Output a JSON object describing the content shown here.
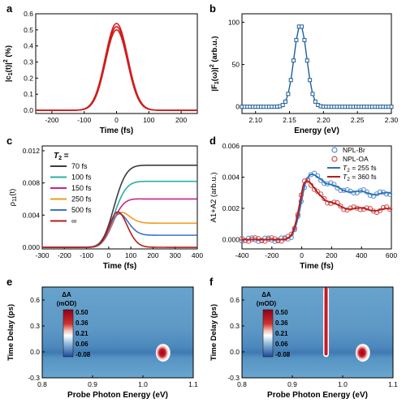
{
  "chart_data": [
    {
      "panel": "a",
      "type": "line",
      "xlabel": "Time (fs)",
      "ylabel": "|c1(t)|² (%)",
      "ylabel_parts": {
        "main": "|c",
        "sub": "1",
        "mid": "(t)|",
        "sup": "2",
        "unit": "(%)"
      },
      "xlim": [
        -250,
        250
      ],
      "ylim": [
        -0.02,
        0.6
      ],
      "xticks": [
        -200,
        -100,
        0,
        100,
        200
      ],
      "yticks": [
        0.0,
        0.1,
        0.2,
        0.3,
        0.4,
        0.5,
        0.6
      ],
      "series": [
        {
          "color": "#d01c1c",
          "shape": "gaussian",
          "center": 0,
          "fwhm": 82,
          "peak": 0.54
        },
        {
          "color": "#d01c1c",
          "shape": "gaussian",
          "center": 0,
          "fwhm": 81,
          "peak": 0.52
        },
        {
          "color": "#d01c1c",
          "shape": "gaussian",
          "center": 0,
          "fwhm": 80,
          "peak": 0.5
        }
      ]
    },
    {
      "panel": "b",
      "type": "line",
      "xlabel": "Energy (eV)",
      "ylabel": "|F1(ω)|² (arb.u.)",
      "ylabel_parts": {
        "main": "|F",
        "sub": "1",
        "mid": "(ω)|",
        "sup": "2",
        "unit": "(arb.u.)"
      },
      "xlim": [
        2.08,
        2.3
      ],
      "ylim": [
        -8,
        110
      ],
      "xticks": [
        2.1,
        2.15,
        2.2,
        2.25,
        2.3
      ],
      "yticks": [
        0,
        50,
        100
      ],
      "series": [
        {
          "color": "#1f5f99",
          "marker": "square",
          "shape": "gaussian",
          "center": 2.166,
          "fwhm": 0.022,
          "peak": 97,
          "x_start": 2.08,
          "x_end": 2.3,
          "step": 0.004
        }
      ]
    },
    {
      "panel": "c",
      "type": "line",
      "xlabel": "Time (fs)",
      "ylabel": "ρ11(t)",
      "ylabel_parts": {
        "main": "ρ",
        "sub": "11",
        "mid": "(t)",
        "sup": "",
        "unit": ""
      },
      "xlim": [
        -300,
        400
      ],
      "ylim": [
        -0.0002,
        0.0126
      ],
      "xticks": [
        -300,
        -200,
        -100,
        0,
        100,
        200,
        300,
        400
      ],
      "yticks": [
        0.0,
        0.004,
        0.008,
        0.012
      ],
      "legend_title": "T2 =",
      "legend_title_parts": {
        "main": "T",
        "sub": "2",
        "rest": " ="
      },
      "series": [
        {
          "name": "70 fs",
          "color": "#3c3c3c",
          "final": 0.0102,
          "peak_at_100": 0.01185
        },
        {
          "name": "100 fs",
          "color": "#2ab0a6",
          "final": 0.0082,
          "peak_at_100": 0.0095
        },
        {
          "name": "150 fs",
          "color": "#c8238c",
          "final": 0.006,
          "peak_at_100": 0.0075
        },
        {
          "name": "250 fs",
          "color": "#f39a1b",
          "final": 0.003,
          "peak_at_100": 0.006
        },
        {
          "name": "500 fs",
          "color": "#3b73c6",
          "final": 0.0015,
          "peak_at_100": 0.0054
        },
        {
          "name": "∞",
          "color": "#b81d1d",
          "final": 0.0,
          "peak_at_100": 0.0051
        }
      ]
    },
    {
      "panel": "d",
      "type": "scatter",
      "xlabel": "Time (fs)",
      "ylabel": "A1+A2 (arb.u.)",
      "xlim": [
        -400,
        600
      ],
      "ylim": [
        -0.0006,
        0.006
      ],
      "xticks": [
        -400,
        -200,
        0,
        200,
        400,
        600
      ],
      "yticks": [
        0.0,
        0.002,
        0.004,
        0.006
      ],
      "legend": [
        {
          "label": "NPL-Br",
          "type": "marker",
          "color": "#4f8fd0"
        },
        {
          "label": "NPL-OA",
          "type": "marker",
          "color": "#d44a4a"
        },
        {
          "label_parts": {
            "main": "T",
            "sub": "2",
            "rest": " = 255 fs"
          },
          "type": "line",
          "color": "#2f6fb6"
        },
        {
          "label_parts": {
            "main": "T",
            "sub": "2",
            "rest": " = 360 fs"
          },
          "type": "line",
          "color": "#b51c1c"
        }
      ],
      "series": [
        {
          "name": "NPL-Br fit",
          "color": "#2f6fb6",
          "center": 20,
          "rise": 60,
          "peak": 0.0051,
          "final": 0.0029,
          "decay": 130
        },
        {
          "name": "NPL-OA fit",
          "color": "#b51c1c",
          "center": 10,
          "rise": 55,
          "peak": 0.005,
          "final": 0.0019,
          "decay": 95
        }
      ]
    },
    {
      "panel": "e",
      "type": "heatmap",
      "xlabel": "Probe Photon Energy (eV)",
      "ylabel": "Time Delay (ps)",
      "xlim": [
        0.8,
        1.1
      ],
      "ylim": [
        -0.3,
        0.75
      ],
      "xticks": [
        0.8,
        0.9,
        1.0,
        1.1
      ],
      "yticks": [
        -0.3,
        0.0,
        0.3,
        0.6
      ],
      "colorbar_title": "ΔA",
      "colorbar_unit": "(mOD)",
      "colorbar_ticks": [
        0.5,
        0.36,
        0.21,
        0.06,
        -0.08
      ],
      "features": [
        {
          "kind": "blob",
          "x": 1.04,
          "y": -0.01,
          "value": 0.5
        }
      ]
    },
    {
      "panel": "f",
      "type": "heatmap",
      "xlabel": "Probe Photon Energy (eV)",
      "ylabel": "Time Delay (ps)",
      "xlim": [
        0.8,
        1.1
      ],
      "ylim": [
        -0.3,
        0.75
      ],
      "xticks": [
        0.8,
        0.9,
        1.0,
        1.1
      ],
      "yticks": [
        -0.3,
        0.0,
        0.3,
        0.6
      ],
      "colorbar_title": "ΔA",
      "colorbar_unit": "(mOD)",
      "colorbar_ticks": [
        0.5,
        0.36,
        0.21,
        0.06,
        -0.08
      ],
      "features": [
        {
          "kind": "line",
          "x": 0.967,
          "y_from": -0.06,
          "y_to": 0.75,
          "value": 0.5
        },
        {
          "kind": "blob",
          "x": 1.04,
          "y": -0.01,
          "value": 0.5
        }
      ]
    }
  ]
}
